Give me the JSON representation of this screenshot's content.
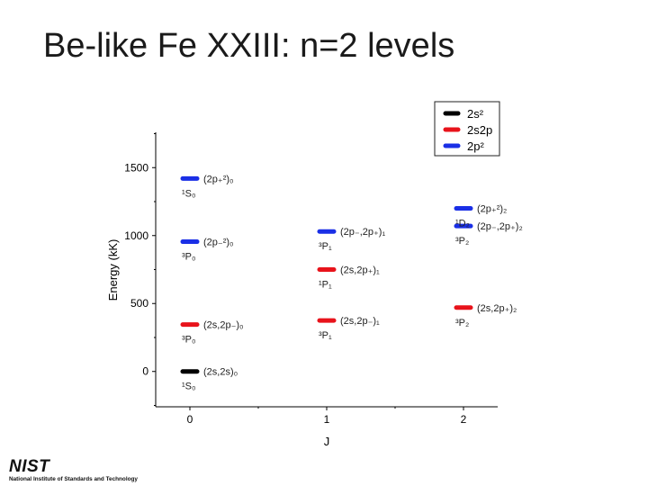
{
  "slide": {
    "title": "Be-like Fe XXIII: n=2 levels"
  },
  "chart_data": {
    "type": "scatter",
    "xlabel": "J",
    "ylabel": "Energy (kK)",
    "xlim": [
      -0.25,
      2.25
    ],
    "ylim": [
      -260,
      1760
    ],
    "x_ticks": [
      0,
      1,
      2
    ],
    "x_tick_labels": [
      "0",
      "1",
      "2"
    ],
    "y_ticks": [
      0,
      500,
      1000,
      1500
    ],
    "y_tick_labels": [
      "0",
      "500",
      "1000",
      "1500"
    ],
    "grid": false,
    "legend_position": "top-right",
    "series": [
      {
        "name": "2s²",
        "color": "#000000",
        "points": [
          {
            "x": 0,
            "y": 0,
            "label": "(2s,2s)₀",
            "term": "¹S₀"
          }
        ]
      },
      {
        "name": "2s2p",
        "color": "#e8131b",
        "points": [
          {
            "x": 0,
            "y": 345,
            "label": "(2s,2p₋)₀",
            "term": "³P₀"
          },
          {
            "x": 1,
            "y": 375,
            "label": "(2s,2p₋)₁",
            "term": "³P₁"
          },
          {
            "x": 1,
            "y": 750,
            "label": "(2s,2p₊)₁",
            "term": "¹P₁"
          },
          {
            "x": 2,
            "y": 470,
            "label": "(2s,2p₊)₂",
            "term": "³P₂"
          }
        ]
      },
      {
        "name": "2p²",
        "color": "#1a2fe6",
        "points": [
          {
            "x": 0,
            "y": 955,
            "label": "(2p₋²)₀",
            "term": "³P₀"
          },
          {
            "x": 0,
            "y": 1420,
            "label": "(2p₊²)₀",
            "term": "¹S₀"
          },
          {
            "x": 1,
            "y": 1030,
            "label": "(2p₋,2p₊)₁",
            "term": "³P₁"
          },
          {
            "x": 2,
            "y": 1070,
            "label": "(2p₋,2p₊)₂",
            "term": "³P₂"
          },
          {
            "x": 2,
            "y": 1200,
            "label": "(2p₊²)₂",
            "term": "¹D₂"
          }
        ]
      }
    ]
  },
  "logo": {
    "name": "NIST",
    "subtitle": "National Institute of Standards and Technology"
  }
}
